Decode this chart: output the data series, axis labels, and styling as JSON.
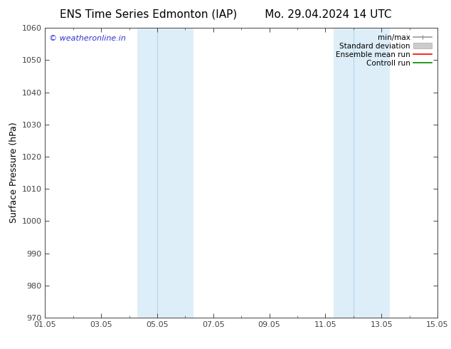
{
  "title": "ENS Time Series Edmonton (IAP)",
  "title2": "Mo. 29.04.2024 14 UTC",
  "ylabel": "Surface Pressure (hPa)",
  "ylim": [
    970,
    1060
  ],
  "yticks": [
    970,
    980,
    990,
    1000,
    1010,
    1020,
    1030,
    1040,
    1050,
    1060
  ],
  "xlim": [
    0,
    14
  ],
  "xtick_labels": [
    "01.05",
    "03.05",
    "05.05",
    "07.05",
    "09.05",
    "11.05",
    "13.05",
    "15.05"
  ],
  "xtick_positions": [
    0,
    2,
    4,
    6,
    8,
    10,
    12,
    14
  ],
  "shaded_bands": [
    {
      "xmin": 3.3,
      "xmax": 4.0,
      "color": "#ddeef8"
    },
    {
      "xmin": 4.0,
      "xmax": 5.3,
      "color": "#ddeef8"
    },
    {
      "xmin": 10.3,
      "xmax": 11.0,
      "color": "#ddeef8"
    },
    {
      "xmin": 11.0,
      "xmax": 12.3,
      "color": "#ddeef8"
    }
  ],
  "band_dividers": [
    4.0,
    11.0
  ],
  "band_divider_color": "#b8d4e8",
  "watermark": "© weatheronline.in",
  "watermark_color": "#3333cc",
  "legend_items": [
    "min/max",
    "Standard deviation",
    "Ensemble mean run",
    "Controll run"
  ],
  "legend_colors": [
    "#999999",
    "#cccccc",
    "#ff0000",
    "#008800"
  ],
  "bg_color": "#ffffff",
  "plot_bg_color": "#ffffff",
  "spine_color": "#444444",
  "tick_color": "#444444",
  "label_color": "#000000",
  "title_fontsize": 11,
  "ylabel_fontsize": 9,
  "tick_fontsize": 8,
  "watermark_fontsize": 8,
  "legend_fontsize": 7.5
}
